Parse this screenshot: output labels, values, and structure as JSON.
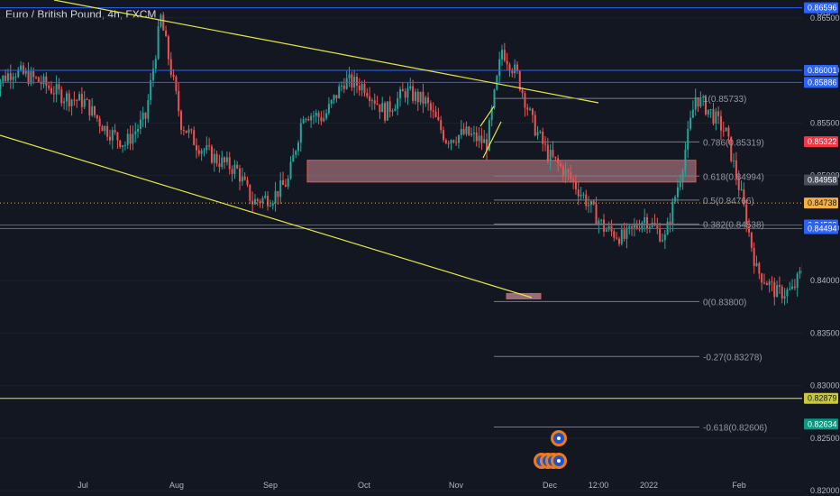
{
  "header": {
    "symbol_title": "Euro / British Pound, 4h, FXCM"
  },
  "colors": {
    "background": "#131722",
    "up_candle": "#26a69a",
    "down_candle": "#ef5350",
    "trendline": "#e6e64a",
    "hline": "#2962ff",
    "fib": "#787b86",
    "short_risk": "#7b1f25",
    "short_reward": "#1e4d2b",
    "zone": "#f4a6b0"
  },
  "chart_data": {
    "type": "candlestick",
    "title": "Euro / British Pound, 4h, FXCM",
    "timeframe": "4h",
    "x_tick_labels": [
      "Jul",
      "Aug",
      "Sep",
      "Oct",
      "Nov",
      "Dec",
      "12:00",
      "2022",
      "Feb"
    ],
    "y_tick_labels": [
      "0.86500",
      "0.86000",
      "0.85500",
      "0.85000",
      "0.84500",
      "0.84000",
      "0.83500",
      "0.83000",
      "0.82500",
      "0.82000"
    ],
    "ylim": [
      0.8195,
      0.8667
    ],
    "currency_tag": "GBP",
    "price_waypoints": [
      [
        "2021-06-21",
        0.8585
      ],
      [
        "2021-06-25",
        0.86
      ],
      [
        "2021-06-30",
        0.859
      ],
      [
        "2021-07-05",
        0.8575
      ],
      [
        "2021-07-09",
        0.857
      ],
      [
        "2021-07-13",
        0.8545
      ],
      [
        "2021-07-17",
        0.853
      ],
      [
        "2021-07-21",
        0.8555
      ],
      [
        "2021-07-24",
        0.865
      ],
      [
        "2021-07-28",
        0.855
      ],
      [
        "2021-07-31",
        0.853
      ],
      [
        "2021-08-04",
        0.8515
      ],
      [
        "2021-08-08",
        0.8505
      ],
      [
        "2021-08-11",
        0.8475
      ],
      [
        "2021-08-15",
        0.848
      ],
      [
        "2021-08-18",
        0.8495
      ],
      [
        "2021-08-21",
        0.856
      ],
      [
        "2021-08-25",
        0.8555
      ],
      [
        "2021-08-29",
        0.859
      ],
      [
        "2021-09-02",
        0.8585
      ],
      [
        "2021-09-06",
        0.856
      ],
      [
        "2021-09-10",
        0.858
      ],
      [
        "2021-09-14",
        0.857
      ],
      [
        "2021-09-18",
        0.8535
      ],
      [
        "2021-09-22",
        0.854
      ],
      [
        "2021-09-26",
        0.853
      ],
      [
        "2021-09-29",
        0.862
      ],
      [
        "2021-10-02",
        0.8595
      ],
      [
        "2021-10-05",
        0.855
      ],
      [
        "2021-10-08",
        0.852
      ],
      [
        "2021-10-12",
        0.85
      ],
      [
        "2021-10-15",
        0.848
      ],
      [
        "2021-10-19",
        0.845
      ],
      [
        "2021-10-23",
        0.844
      ],
      [
        "2021-10-27",
        0.846
      ],
      [
        "2021-10-31",
        0.844
      ],
      [
        "2021-11-03",
        0.85
      ],
      [
        "2021-11-06",
        0.8575
      ],
      [
        "2021-11-09",
        0.856
      ],
      [
        "2021-11-12",
        0.854
      ],
      [
        "2021-11-15",
        0.848
      ],
      [
        "2021-11-18",
        0.841
      ],
      [
        "2021-11-22",
        0.8388
      ],
      [
        "2021-11-25",
        0.839
      ],
      [
        "2021-11-28",
        0.842
      ],
      [
        "2021-12-01",
        0.8496
      ]
    ],
    "horizontal_lines": [
      {
        "label": "0.86596",
        "price": 0.86596,
        "color": "#2962ff"
      },
      {
        "label": "0.86001",
        "price": 0.86001,
        "color": "#2962ff"
      },
      {
        "label": "0.85886",
        "price": 0.85886,
        "color": "#2962ff"
      },
      {
        "label": "0.84529",
        "price": 0.84529,
        "color": "#2962ff"
      },
      {
        "label": "0.84494",
        "price": 0.84494,
        "color": "#2962ff"
      },
      {
        "label": "0.82879",
        "price": 0.82879,
        "color": "#e6e64a"
      }
    ],
    "price_tags": [
      {
        "label": "0.86596",
        "price": 0.86596,
        "bg": "#2962ff",
        "fg": "#ffffff"
      },
      {
        "label": "0.86001",
        "price": 0.86001,
        "bg": "#2962ff",
        "fg": "#ffffff"
      },
      {
        "label": "0.85886",
        "price": 0.85886,
        "bg": "#2962ff",
        "fg": "#ffffff"
      },
      {
        "label": "0.85322",
        "price": 0.85322,
        "bg": "#f23645",
        "fg": "#ffffff"
      },
      {
        "label": "0.84958",
        "price": 0.84958,
        "bg": "#4a4e5c",
        "fg": "#ffffff"
      },
      {
        "label": "0.84738",
        "price": 0.84738,
        "bg": "#f5b041",
        "fg": "#131722"
      },
      {
        "label": "0.84529",
        "price": 0.84529,
        "bg": "#2962ff",
        "fg": "#ffffff"
      },
      {
        "label": "0.84494",
        "price": 0.84494,
        "bg": "#2962ff",
        "fg": "#ffffff"
      },
      {
        "label": "0.82879",
        "price": 0.82879,
        "bg": "#c9c93a",
        "fg": "#131722"
      },
      {
        "label": "0.82634",
        "price": 0.82634,
        "bg": "#089981",
        "fg": "#ffffff"
      }
    ],
    "fib_levels": [
      {
        "label": "1(0.85733)",
        "price": 0.85733
      },
      {
        "label": "0.786(0.85319)",
        "price": 0.85319
      },
      {
        "label": "0.618(0.84994)",
        "price": 0.84994
      },
      {
        "label": "0.5(0.84766)",
        "price": 0.84766
      },
      {
        "label": "0.382(0.84538)",
        "price": 0.84538
      },
      {
        "label": "0(0.83800)",
        "price": 0.838
      },
      {
        "label": "-0.27(0.83278)",
        "price": 0.83278
      },
      {
        "label": "-0.618(0.82606)",
        "price": 0.82606
      }
    ],
    "short_position": {
      "entry": 0.84958,
      "stop": 0.85322,
      "target": 0.82634
    },
    "resistance_zone": {
      "top": 0.85145,
      "bottom": 0.84938
    },
    "support_box": {
      "top": 0.8386,
      "bottom": 0.8381
    },
    "dotted_price_line": 0.84738
  }
}
